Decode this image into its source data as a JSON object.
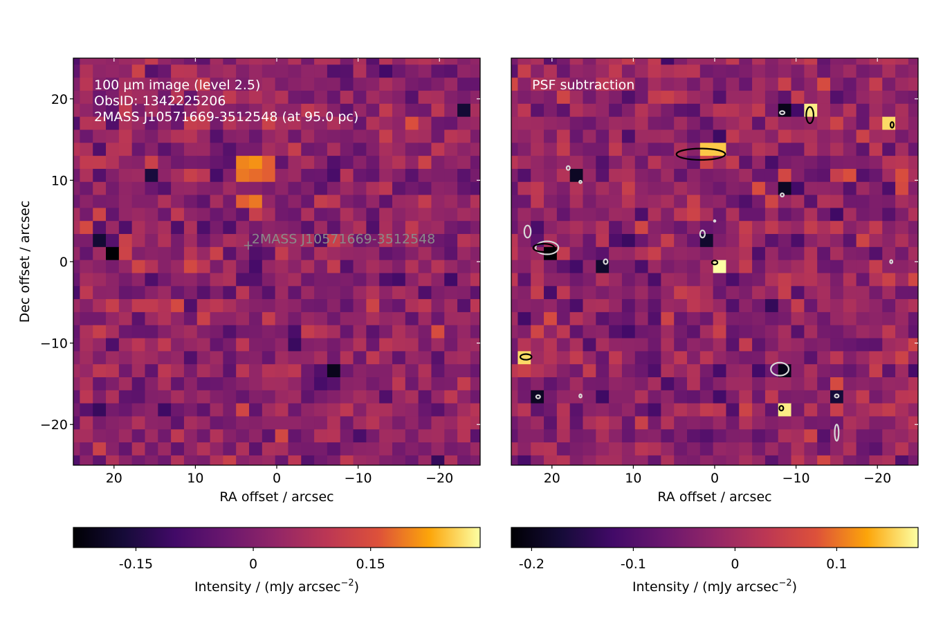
{
  "chart_data": [
    {
      "type": "heatmap",
      "panel": "left",
      "annotation_lines": [
        "100 µm image (level 2.5)",
        "ObsID: 1342225206",
        "2MASS J10571669-3512548 (at 95.0 pc)"
      ],
      "source_marker": {
        "label": "2MASS J10571669-3512548",
        "ra": 3.5,
        "dec": 2.5
      },
      "xlabel": "RA offset / arcsec",
      "ylabel": "Dec offset / arcsec",
      "xlim": [
        25,
        -25
      ],
      "ylim": [
        -25,
        25
      ],
      "xticks": [
        {
          "value": 20,
          "label": "20"
        },
        {
          "value": 10,
          "label": "10"
        },
        {
          "value": 0,
          "label": "0"
        },
        {
          "value": -10,
          "label": "−10"
        },
        {
          "value": -20,
          "label": "−20"
        }
      ],
      "yticks": [
        {
          "value": 20,
          "label": "20"
        },
        {
          "value": 10,
          "label": "10"
        },
        {
          "value": 0,
          "label": "0"
        },
        {
          "value": -10,
          "label": "−10"
        },
        {
          "value": -20,
          "label": "−20"
        }
      ],
      "pixel_size_arcsec": 1.6,
      "colormap": "inferno",
      "colorbar": {
        "label": "Intensity / (mJy arcsec",
        "label_sup": "−2",
        "label_tail": ")",
        "range": [
          -0.23,
          0.29
        ],
        "ticks": [
          {
            "value": -0.15,
            "label": "-0.15"
          },
          {
            "value": 0,
            "label": "0"
          },
          {
            "value": 0.15,
            "label": "0.15"
          }
        ]
      },
      "bright_pixels": [
        {
          "ra": 1.0,
          "dec": 9.8,
          "value": 0.29
        },
        {
          "ra": 2.5,
          "dec": 11.4,
          "value": 0.24
        },
        {
          "ra": 4.1,
          "dec": 9.8,
          "value": 0.22
        },
        {
          "ra": 4.1,
          "dec": 13.0,
          "value": 0.2
        },
        {
          "ra": 2.5,
          "dec": 13.0,
          "value": 0.21
        },
        {
          "ra": 4.1,
          "dec": 11.4,
          "value": 0.19
        },
        {
          "ra": 1.0,
          "dec": 11.4,
          "value": 0.17
        },
        {
          "ra": 2.5,
          "dec": 8.2,
          "value": 0.19
        },
        {
          "ra": 4.1,
          "dec": 8.2,
          "value": 0.17
        },
        {
          "ra": 1.0,
          "dec": 13.0,
          "value": 0.17
        },
        {
          "ra": 2.5,
          "dec": 9.8,
          "value": 0.18
        }
      ],
      "dark_pixels": [
        {
          "ra": 20.7,
          "dec": 1.7,
          "value": -0.23
        },
        {
          "ra": -7.8,
          "dec": -12.7,
          "value": -0.2
        },
        {
          "ra": 22.3,
          "dec": 3.3,
          "value": -0.17
        },
        {
          "ra": 16.0,
          "dec": 9.8,
          "value": -0.16
        },
        {
          "ra": -23.7,
          "dec": 17.8,
          "value": -0.17
        }
      ]
    },
    {
      "type": "heatmap",
      "panel": "right",
      "annotation_lines": [
        "PSF subtraction"
      ],
      "xlabel": "RA offset / arcsec",
      "xlim": [
        25,
        -25
      ],
      "ylim": [
        -25,
        25
      ],
      "xticks": [
        {
          "value": 20,
          "label": "20"
        },
        {
          "value": 10,
          "label": "10"
        },
        {
          "value": 0,
          "label": "0"
        },
        {
          "value": -10,
          "label": "−10"
        },
        {
          "value": -20,
          "label": "−20"
        }
      ],
      "pixel_size_arcsec": 1.6,
      "colormap": "inferno",
      "colorbar": {
        "label": "Intensity / (mJy arcsec",
        "label_sup": "−2",
        "label_tail": ")",
        "range": [
          -0.22,
          0.18
        ],
        "ticks": [
          {
            "value": -0.2,
            "label": "-0.2"
          },
          {
            "value": -0.1,
            "label": "-0.1"
          },
          {
            "value": 0,
            "label": "0"
          },
          {
            "value": 0.1,
            "label": "0.1"
          }
        ]
      },
      "contours": {
        "positive_color": "#000000",
        "negative_color": "#d8d8d8",
        "positive": [
          {
            "ra": 1.7,
            "dec": 13.2,
            "rx": 3.0,
            "ry": 0.7
          },
          {
            "ra": -11.7,
            "dec": 18.0,
            "rx": 0.45,
            "ry": 1.0
          },
          {
            "ra": 21.0,
            "dec": 1.7,
            "rx": 1.3,
            "ry": 0.5
          },
          {
            "ra": 23.2,
            "dec": -11.7,
            "rx": 0.7,
            "ry": 0.35
          },
          {
            "ra": 0.0,
            "dec": -0.1,
            "rx": 0.35,
            "ry": 0.25
          },
          {
            "ra": -21.8,
            "dec": 16.8,
            "rx": 0.2,
            "ry": 0.35
          },
          {
            "ra": -8.2,
            "dec": -18.0,
            "rx": 0.25,
            "ry": 0.3
          }
        ],
        "negative": [
          {
            "ra": 20.6,
            "dec": 1.7,
            "rx": 1.4,
            "ry": 0.8
          },
          {
            "ra": 23.0,
            "dec": 3.7,
            "rx": 0.4,
            "ry": 0.75
          },
          {
            "ra": -8.0,
            "dec": -13.2,
            "rx": 1.1,
            "ry": 0.8
          },
          {
            "ra": 1.5,
            "dec": 3.4,
            "rx": 0.3,
            "ry": 0.45
          },
          {
            "ra": -15.0,
            "dec": -21.0,
            "rx": 0.25,
            "ry": 1.0
          },
          {
            "ra": -8.3,
            "dec": 18.3,
            "rx": 0.3,
            "ry": 0.2
          },
          {
            "ra": -8.3,
            "dec": 8.2,
            "rx": 0.2,
            "ry": 0.2
          },
          {
            "ra": 13.4,
            "dec": 0.0,
            "rx": 0.25,
            "ry": 0.3
          },
          {
            "ra": 18.0,
            "dec": 11.5,
            "rx": 0.2,
            "ry": 0.25
          },
          {
            "ra": 16.5,
            "dec": 9.8,
            "rx": 0.15,
            "ry": 0.15
          },
          {
            "ra": 21.7,
            "dec": -16.6,
            "rx": 0.25,
            "ry": 0.2
          },
          {
            "ra": 16.5,
            "dec": -16.5,
            "rx": 0.15,
            "ry": 0.2
          },
          {
            "ra": -15.0,
            "dec": -16.5,
            "rx": 0.25,
            "ry": 0.2
          },
          {
            "ra": -21.7,
            "dec": 0.0,
            "rx": 0.15,
            "ry": 0.2
          },
          {
            "ra": 0.0,
            "dec": 5.0,
            "rx": 0.1,
            "ry": 0.1
          }
        ]
      },
      "bright_pixels": [
        {
          "ra": 0.0,
          "dec": 0.0,
          "value": 0.18
        },
        {
          "ra": -11.7,
          "dec": 18.0,
          "value": 0.17
        },
        {
          "ra": -21.7,
          "dec": 16.5,
          "value": 0.16
        },
        {
          "ra": -8.3,
          "dec": -18.2,
          "value": 0.17
        },
        {
          "ra": 1.7,
          "dec": 13.2,
          "value": 0.15
        },
        {
          "ra": 0.0,
          "dec": 13.2,
          "value": 0.15
        },
        {
          "ra": 23.3,
          "dec": -11.7,
          "value": 0.16
        }
      ],
      "dark_pixels": [
        {
          "ra": 20.0,
          "dec": 1.7,
          "value": -0.22
        },
        {
          "ra": -8.3,
          "dec": 18.3,
          "value": -0.2
        },
        {
          "ra": -8.3,
          "dec": 8.3,
          "value": -0.19
        },
        {
          "ra": -8.3,
          "dec": -13.2,
          "value": -0.2
        },
        {
          "ra": 13.3,
          "dec": 0.0,
          "value": -0.18
        },
        {
          "ra": 1.7,
          "dec": 3.3,
          "value": -0.18
        },
        {
          "ra": 16.7,
          "dec": 10.0,
          "value": -0.19
        },
        {
          "ra": 21.7,
          "dec": -16.5,
          "value": -0.19
        },
        {
          "ra": -15.0,
          "dec": -16.5,
          "value": -0.17
        }
      ]
    }
  ]
}
